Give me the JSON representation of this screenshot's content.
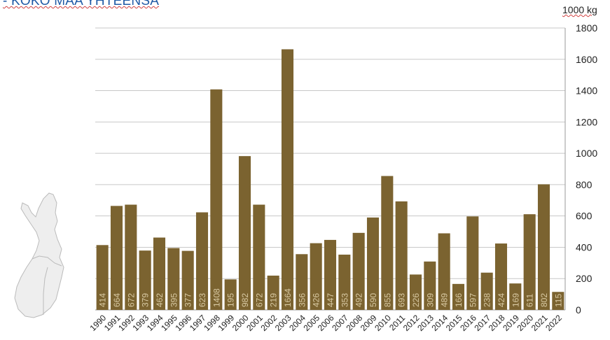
{
  "title": "- KOKO MAA YHTEENSÄ",
  "colors": {
    "bar": "#7b6330",
    "bar_label": "#d8c9a3",
    "grid": "#c8c8c8",
    "title": "#1f5aa6",
    "map_fill": "#eeeeee",
    "map_stroke": "#bbbbbb"
  },
  "map_icon": "finland-map",
  "chart_data": {
    "type": "bar",
    "title": "- KOKO MAA YHTEENSÄ",
    "ylabel": "1000 kg",
    "xlabel": "",
    "ylim": [
      0,
      1800
    ],
    "yticks": [
      0,
      200,
      400,
      600,
      800,
      1000,
      1200,
      1400,
      1600,
      1800
    ],
    "y_axis_position": "right",
    "grid": true,
    "categories": [
      "1990",
      "1991",
      "1992",
      "1993",
      "1994",
      "1995",
      "1996",
      "1997",
      "1998",
      "1999",
      "2000",
      "2001",
      "2002",
      "2003",
      "2004",
      "2005",
      "2006",
      "2007",
      "2008",
      "2009",
      "2010",
      "2011",
      "2012",
      "2013",
      "2014",
      "2015",
      "2016",
      "2017",
      "2018",
      "2019",
      "2020",
      "2021",
      "2022"
    ],
    "values": [
      414,
      664,
      672,
      379,
      462,
      395,
      377,
      623,
      1408,
      195,
      982,
      672,
      219,
      1664,
      356,
      426,
      447,
      353,
      492,
      590,
      855,
      693,
      226,
      309,
      489,
      166,
      597,
      238,
      424,
      169,
      611,
      802,
      115
    ],
    "data_labels": [
      "414",
      "664",
      "672",
      "379",
      "462",
      "395",
      "377",
      "623",
      "1408",
      "195",
      "982",
      "672",
      "219",
      "1664",
      "356",
      "426",
      "447",
      "353",
      "492",
      "590",
      "855",
      "693",
      "226",
      "309",
      "489",
      "166",
      "597",
      "238",
      "424",
      "169",
      "611",
      "802",
      "115"
    ]
  }
}
